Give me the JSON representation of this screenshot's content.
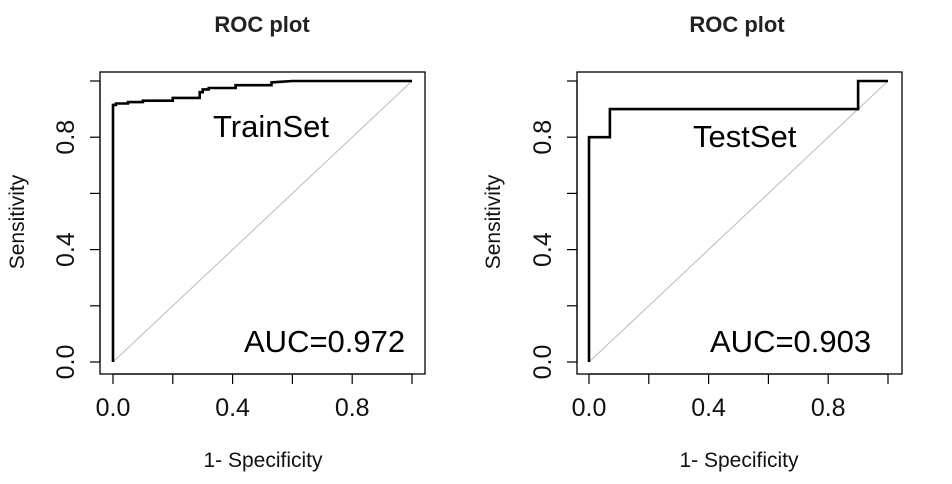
{
  "chart_data": [
    {
      "type": "line",
      "title": "ROC plot",
      "xlabel": "1- Specificity",
      "ylabel": "Sensitivity",
      "xlim": [
        0,
        1
      ],
      "ylim": [
        0,
        1
      ],
      "x_ticks": [
        "0.0",
        "0.4",
        "0.8"
      ],
      "y_ticks": [
        "0.0",
        "0.4",
        "0.8"
      ],
      "set_label": "TrainSet",
      "auc_label": "AUC=0.972",
      "diagonal_reference": true,
      "series": [
        {
          "x": [
            0,
            0,
            0.005,
            0.01,
            0.01,
            0.02,
            0.02,
            0.03,
            0.03,
            0.05,
            0.05,
            0.1,
            0.1,
            0.2,
            0.2,
            0.29,
            0.29,
            0.3,
            0.3,
            0.32,
            0.32,
            0.41,
            0.41,
            0.53,
            0.53,
            0.6,
            1
          ],
          "y": [
            0,
            0.915,
            0.915,
            0.915,
            0.92,
            0.92,
            0.92,
            0.92,
            0.92,
            0.92,
            0.925,
            0.925,
            0.93,
            0.93,
            0.94,
            0.94,
            0.96,
            0.96,
            0.97,
            0.97,
            0.975,
            0.975,
            0.985,
            0.985,
            0.995,
            1,
            1
          ]
        }
      ]
    },
    {
      "type": "line",
      "title": "ROC plot",
      "xlabel": "1- Specificity",
      "ylabel": "Sensitivity",
      "xlim": [
        0,
        1
      ],
      "ylim": [
        0,
        1
      ],
      "x_ticks": [
        "0.0",
        "0.4",
        "0.8"
      ],
      "y_ticks": [
        "0.0",
        "0.4",
        "0.8"
      ],
      "set_label": "TestSet",
      "auc_label": "AUC=0.903",
      "diagonal_reference": true,
      "series": [
        {
          "x": [
            0,
            0,
            0.07,
            0.07,
            0.9,
            0.9,
            1
          ],
          "y": [
            0,
            0.8,
            0.8,
            0.9,
            0.9,
            1,
            1
          ]
        }
      ]
    }
  ]
}
